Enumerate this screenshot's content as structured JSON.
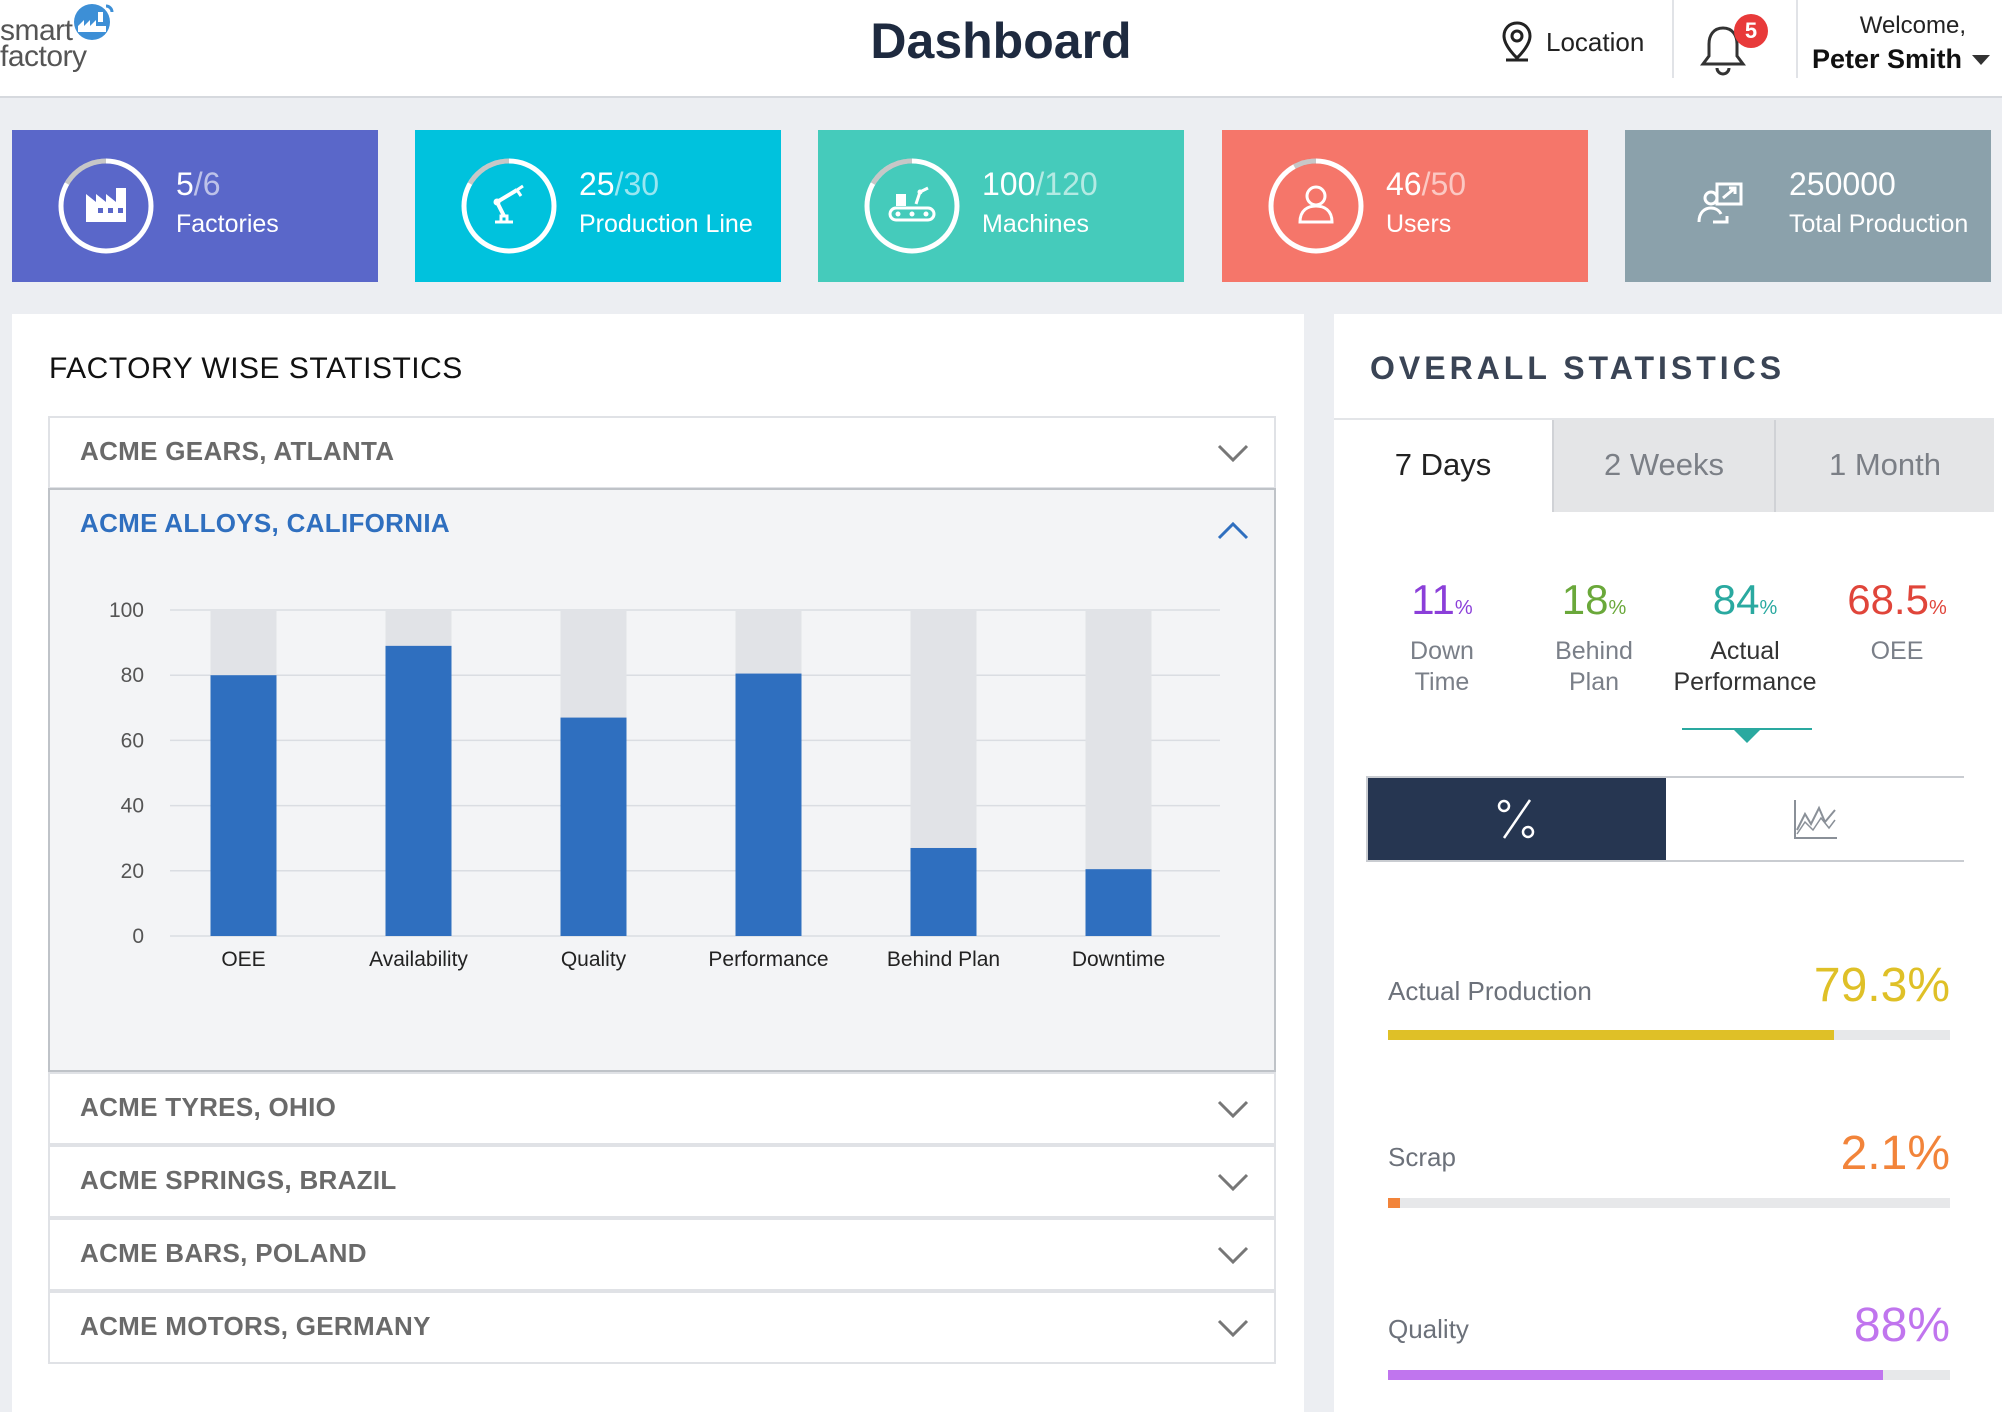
{
  "header": {
    "logo_line1": "smart",
    "logo_line2": "factory",
    "title": "Dashboard",
    "location_label": "Location",
    "notification_count": "5",
    "welcome_label": "Welcome,",
    "user_name": "Peter Smith"
  },
  "cards": [
    {
      "current": "5",
      "total": "/6",
      "label": "Factories",
      "color": "#5a67c9",
      "icon": "factory-icon"
    },
    {
      "current": "25",
      "total": "/30",
      "label": "Production Line",
      "color": "#00c2dd",
      "icon": "robot-arm-icon"
    },
    {
      "current": "100",
      "total": "/120",
      "label": "Machines",
      "color": "#45cbbb",
      "icon": "machine-conveyor-icon"
    },
    {
      "current": "46",
      "total": "/50",
      "label": "Users",
      "color": "#f5766a",
      "icon": "user-icon"
    },
    {
      "current": "250000",
      "total": "",
      "label": "Total Production",
      "color": "#8ba1ab",
      "icon": "production-icon"
    }
  ],
  "factory_stats": {
    "title": "FACTORY WISE STATISTICS",
    "factories": [
      {
        "name": "ACME GEARS, ATLANTA",
        "expanded": false
      },
      {
        "name": "ACME ALLOYS, CALIFORNIA",
        "expanded": true
      },
      {
        "name": "ACME TYRES, OHIO",
        "expanded": false
      },
      {
        "name": "ACME SPRINGS, BRAZIL",
        "expanded": false
      },
      {
        "name": "ACME BARS, POLAND",
        "expanded": false
      },
      {
        "name": "ACME MOTORS, GERMANY",
        "expanded": false
      }
    ]
  },
  "chart_data": {
    "type": "bar",
    "categories": [
      "OEE",
      "Availability",
      "Quality",
      "Performance",
      "Behind Plan",
      "Downtime"
    ],
    "values": [
      80,
      89,
      67,
      80.5,
      27,
      20.5
    ],
    "background_max": 100,
    "y_ticks": [
      "100",
      "80",
      "60",
      "40",
      "20",
      "0"
    ],
    "ylim": [
      0,
      100
    ],
    "bar_color": "#2f6fbf",
    "track_color": "#e1e3e7",
    "grid": true
  },
  "overall": {
    "title": "OVERALL STATISTICS",
    "tabs": [
      {
        "label": "7 Days",
        "active": true
      },
      {
        "label": "2 Weeks",
        "active": false
      },
      {
        "label": "1 Month",
        "active": false
      }
    ],
    "metrics": [
      {
        "value": "11",
        "unit": "%",
        "label1": "Down",
        "label2": "Time",
        "color": "#8b3fd9"
      },
      {
        "value": "18",
        "unit": "%",
        "label1": "Behind",
        "label2": "Plan",
        "color": "#6aa83a"
      },
      {
        "value": "84",
        "unit": "%",
        "label1": "Actual",
        "label2": "Performance",
        "color": "#2aa9a0"
      },
      {
        "value": "68.5",
        "unit": "%",
        "label1": "OEE",
        "label2": "",
        "color": "#e0453a"
      }
    ],
    "view_toggle": {
      "percent_icon": "percent-icon",
      "chart_icon": "line-chart-icon"
    },
    "bars": [
      {
        "label": "Actual Production",
        "value": "79.3%",
        "fraction": 0.793,
        "color": "#dfc027"
      },
      {
        "label": "Scrap",
        "value": "2.1%",
        "fraction": 0.021,
        "color": "#f2843a"
      },
      {
        "label": "Quality",
        "value": "88%",
        "fraction": 0.88,
        "color": "#c075ee"
      }
    ]
  }
}
